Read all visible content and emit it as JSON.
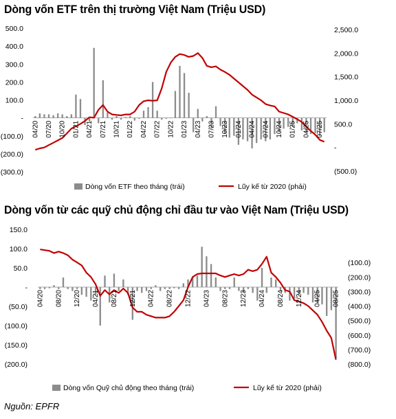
{
  "source": "Nguồn: EPFR",
  "chart_data": [
    {
      "type": "bar",
      "title": "Dòng vốn ETF trên thị trường Việt Nam (Triệu USD)",
      "legend": [
        "Dòng vốn ETF theo tháng (trái)",
        "Lũy kế từ 2020 (phải)"
      ],
      "legend_position": "bottom",
      "grid": false,
      "ylim_left": [
        -300,
        500
      ],
      "yticks_left": [
        "500.0",
        "400.0",
        "300.0",
        "200.0",
        "100.0",
        "-",
        "(100.0)",
        "(200.0)",
        "(300.0)"
      ],
      "ylim_right": [
        -500,
        2500
      ],
      "yticks_right": [
        "2,500.0",
        "2,000.0",
        "1,500.0",
        "1,000.0",
        "500.0",
        "-",
        "(500.0)"
      ],
      "xticks": [
        "04/20",
        "07/20",
        "10/20",
        "01/21",
        "04/21",
        "07/21",
        "10/21",
        "01/22",
        "04/22",
        "07/22",
        "10/22",
        "01/23",
        "04/23",
        "07/23",
        "10/23",
        "01/24",
        "04/24",
        "07/24",
        "10/24",
        "01/25",
        "04/25",
        "07/25"
      ],
      "months": [
        "04/20",
        "05/20",
        "06/20",
        "07/20",
        "08/20",
        "09/20",
        "10/20",
        "11/20",
        "12/20",
        "01/21",
        "02/21",
        "03/21",
        "04/21",
        "05/21",
        "06/21",
        "07/21",
        "08/21",
        "09/21",
        "10/21",
        "11/21",
        "12/21",
        "01/22",
        "02/22",
        "03/22",
        "04/22",
        "05/22",
        "06/22",
        "07/22",
        "08/22",
        "09/22",
        "10/22",
        "11/22",
        "12/22",
        "01/23",
        "02/23",
        "03/23",
        "04/23",
        "05/23",
        "06/23",
        "07/23",
        "08/23",
        "09/23",
        "10/23",
        "11/23",
        "12/23",
        "01/24",
        "02/24",
        "03/24",
        "04/24",
        "05/24",
        "06/24",
        "07/24",
        "08/24",
        "09/24",
        "10/24",
        "11/24",
        "12/24",
        "01/25",
        "02/25",
        "03/25",
        "04/25",
        "05/25",
        "06/25",
        "07/25",
        "08/25"
      ],
      "series": [
        {
          "name": "Dòng vốn ETF theo tháng (trái)",
          "kind": "bar",
          "axis": "left",
          "color": "#8c8c8c",
          "values": [
            10,
            25,
            20,
            20,
            15,
            25,
            20,
            10,
            20,
            130,
            105,
            -40,
            -20,
            390,
            -30,
            210,
            30,
            -10,
            10,
            -10,
            5,
            10,
            -15,
            -5,
            40,
            60,
            200,
            40,
            -10,
            -5,
            0,
            150,
            290,
            250,
            140,
            -80,
            50,
            -20,
            10,
            -60,
            65,
            -45,
            -90,
            -110,
            -100,
            -150,
            -120,
            -130,
            -170,
            -140,
            -120,
            -130,
            -120,
            -90,
            -80,
            -60,
            -50,
            -50,
            -30,
            -70,
            -80,
            -90,
            -85,
            -100,
            -80
          ]
        },
        {
          "name": "Lũy kế từ 2020 (phải)",
          "kind": "line",
          "axis": "right",
          "color": "#c00000",
          "values": [
            -50,
            -20,
            0,
            50,
            100,
            150,
            200,
            300,
            400,
            450,
            500,
            560,
            640,
            630,
            800,
            900,
            760,
            700,
            690,
            680,
            700,
            700,
            760,
            900,
            980,
            1000,
            990,
            1000,
            1250,
            1600,
            1800,
            1920,
            1980,
            1960,
            1920,
            1940,
            2000,
            1900,
            1730,
            1700,
            1720,
            1650,
            1600,
            1540,
            1460,
            1380,
            1300,
            1220,
            1120,
            1060,
            1000,
            920,
            890,
            870,
            760,
            730,
            700,
            650,
            600,
            540,
            440,
            350,
            270,
            160,
            120
          ]
        }
      ]
    },
    {
      "type": "bar",
      "title": "Dòng vốn từ các quỹ chủ động chỉ đầu tư vào Việt Nam (Triệu USD)",
      "legend": [
        "Dòng vốn Quỹ chủ động theo tháng (trái)",
        "Lũy kế từ 2020 (phải)"
      ],
      "legend_position": "bottom",
      "grid": false,
      "ylim_left": [
        -200,
        150
      ],
      "yticks_left": [
        "150.0",
        "100.0",
        "50.0",
        "-",
        "(50.0)",
        "(100.0)",
        "(150.0)",
        "(200.0)"
      ],
      "ylim_right": [
        -800,
        0
      ],
      "yticks_right": [
        "(100.0)",
        "(200.0)",
        "(300.0)",
        "(400.0)",
        "(500.0)",
        "(600.0)",
        "(700.0)",
        "(800.0)"
      ],
      "xticks": [
        "04/20",
        "08/20",
        "12/20",
        "04/21",
        "08/21",
        "12/21",
        "04/22",
        "08/22",
        "12/22",
        "04/23",
        "08/23",
        "12/23",
        "04/24",
        "08/24",
        "12/24",
        "04/25",
        "08/25"
      ],
      "months": [
        "04/20",
        "05/20",
        "06/20",
        "07/20",
        "08/20",
        "09/20",
        "10/20",
        "11/20",
        "12/20",
        "01/21",
        "02/21",
        "03/21",
        "04/21",
        "05/21",
        "06/21",
        "07/21",
        "08/21",
        "09/21",
        "10/21",
        "11/21",
        "12/21",
        "01/22",
        "02/22",
        "03/22",
        "04/22",
        "05/22",
        "06/22",
        "07/22",
        "08/22",
        "09/22",
        "10/22",
        "11/22",
        "12/22",
        "01/23",
        "02/23",
        "03/23",
        "04/23",
        "05/23",
        "06/23",
        "07/23",
        "08/23",
        "09/23",
        "10/23",
        "11/23",
        "12/23",
        "01/24",
        "02/24",
        "03/24",
        "04/24",
        "05/24",
        "06/24",
        "07/24",
        "08/24",
        "09/24",
        "10/24",
        "11/24",
        "12/24",
        "01/25",
        "02/25",
        "03/25",
        "04/25",
        "05/25",
        "06/25",
        "07/25",
        "08/25"
      ],
      "series": [
        {
          "name": "Dòng vốn Quỹ chủ động theo tháng (trái)",
          "kind": "bar",
          "axis": "left",
          "color": "#8c8c8c",
          "values": [
            -5,
            -5,
            -3,
            5,
            -5,
            25,
            -5,
            -10,
            -5,
            -20,
            -25,
            -35,
            -20,
            -100,
            30,
            -40,
            35,
            -10,
            20,
            -20,
            -85,
            -10,
            -15,
            -10,
            -5,
            5,
            -10,
            -5,
            -5,
            -3,
            -5,
            10,
            20,
            25,
            30,
            105,
            80,
            60,
            25,
            -10,
            -5,
            -5,
            25,
            -10,
            -15,
            -5,
            -15,
            -35,
            50,
            -15,
            25,
            20,
            -10,
            -15,
            -35,
            -30,
            -20,
            -15,
            -20,
            -40,
            -40,
            -45,
            -75,
            -60,
            -185
          ]
        },
        {
          "name": "Lũy kế từ 2020 (phải)",
          "kind": "line",
          "axis": "right",
          "color": "#c00000",
          "values": [
            -10,
            -15,
            -20,
            -35,
            -25,
            -35,
            -50,
            -80,
            -100,
            -120,
            -170,
            -200,
            -250,
            -330,
            -290,
            -320,
            -290,
            -310,
            -280,
            -310,
            -410,
            -440,
            -440,
            -460,
            -470,
            -480,
            -480,
            -480,
            -470,
            -440,
            -400,
            -360,
            -270,
            -200,
            -180,
            -175,
            -175,
            -175,
            -175,
            -190,
            -200,
            -190,
            -180,
            -190,
            -180,
            -150,
            -160,
            -150,
            -110,
            -60,
            -170,
            -200,
            -240,
            -290,
            -300,
            -360,
            -370,
            -380,
            -400,
            -430,
            -460,
            -510,
            -570,
            -620,
            -770
          ]
        }
      ]
    }
  ]
}
